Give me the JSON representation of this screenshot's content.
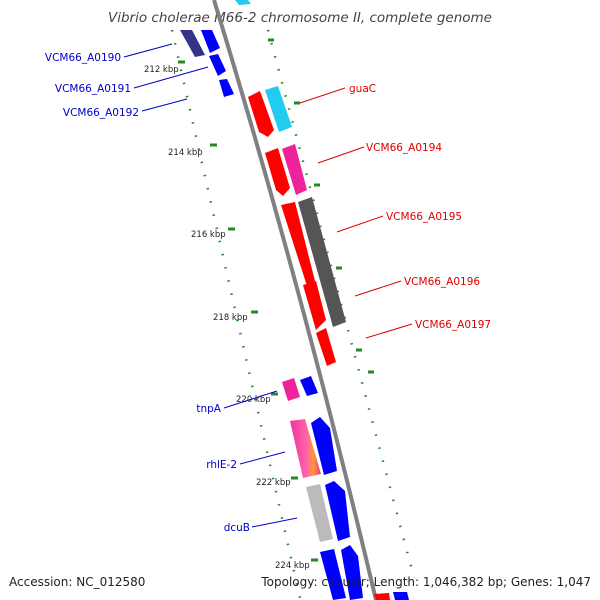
{
  "title": "Vibrio cholerae M66-2 chromosome II, complete genome",
  "footer": {
    "accession": "Accession: NC_012580",
    "topology": "Topology: circular; Length: 1,046,382 bp; Genes: 1,047"
  },
  "tick_labels": [
    "212 kbp",
    "214 kbp",
    "216 kbp",
    "218 kbp",
    "220 kbp",
    "222 kbp",
    "224 kbp"
  ],
  "gene_labels": {
    "left": [
      "VCM66_A0190",
      "VCM66_A0191",
      "VCM66_A0192",
      "tnpA",
      "rhlE-2",
      "dcuB"
    ],
    "right": [
      "guaC",
      "VCM66_A0194",
      "VCM66_A0195",
      "VCM66_A0196",
      "VCM66_A0197"
    ]
  },
  "colors": {
    "backbone": "#808080",
    "label_left": "#0000cc",
    "label_right": "#dd0000",
    "tick": "#228b22",
    "cds_forward": "#0000ff",
    "cds_reverse": "#ff0000",
    "dark_gray": "#555555",
    "light_gray": "#bbbbbb",
    "cyan": "#22ccee",
    "magenta": "#ee2299",
    "dark_navy": "#333388"
  }
}
